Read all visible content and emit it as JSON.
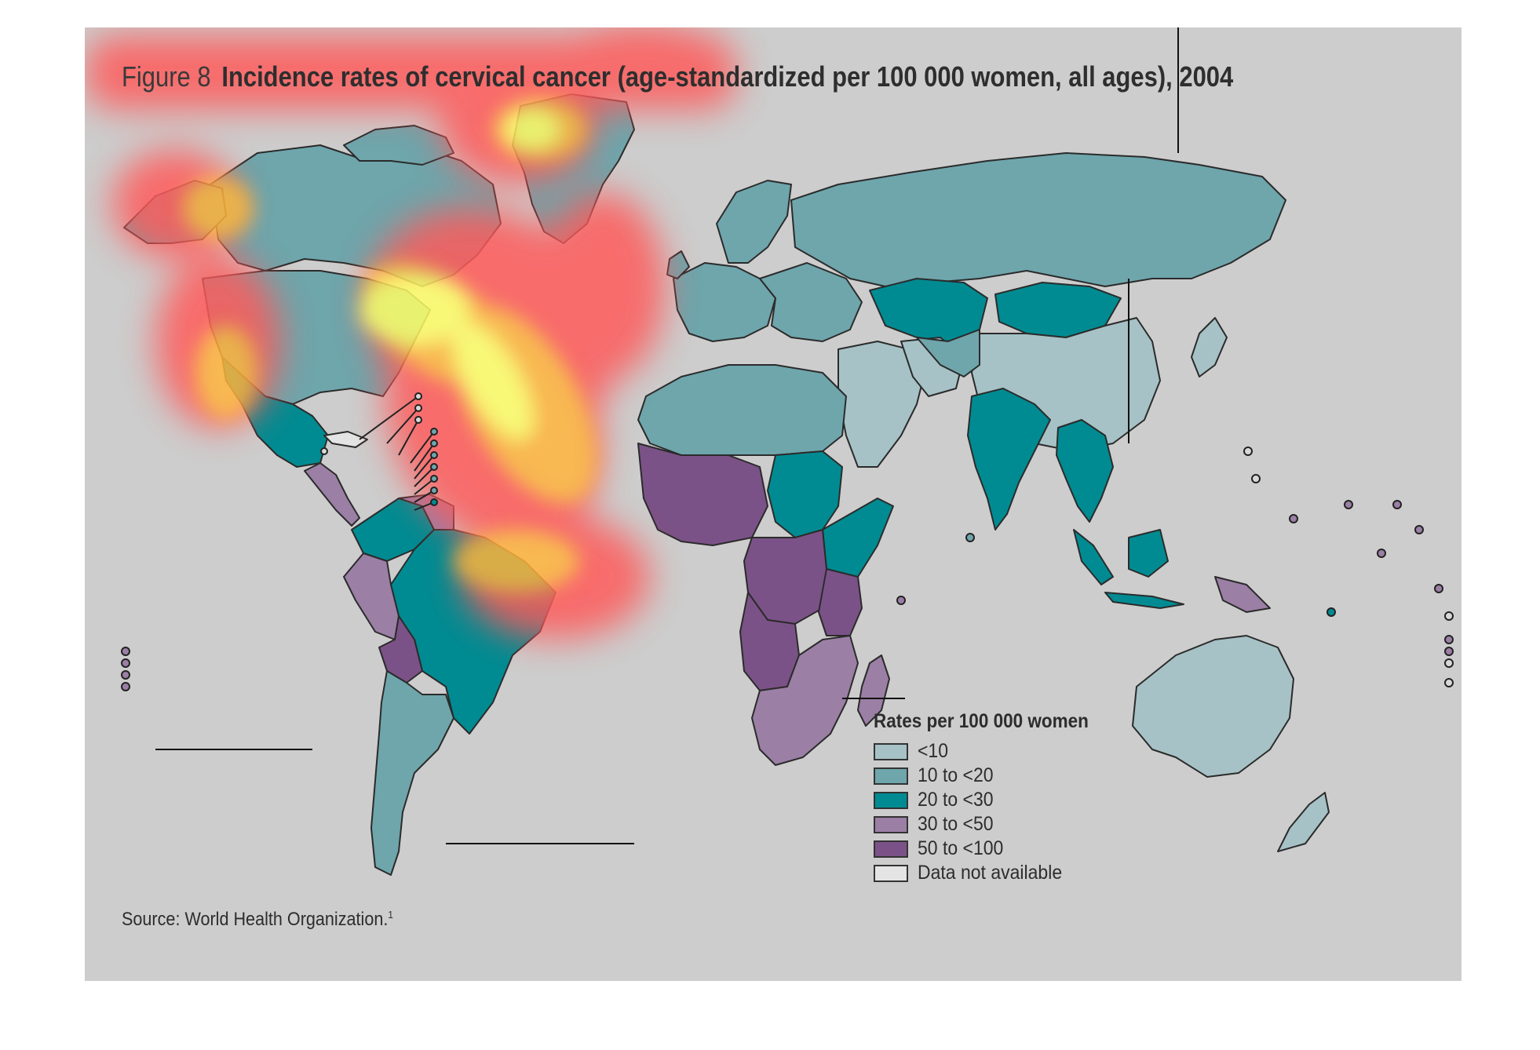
{
  "figure": {
    "label": "Figure 8",
    "title": "Incidence rates of cervical cancer (age-standardized per 100 000 women, all ages), 2004",
    "source": "Source: World Health Organization.",
    "source_ref": "1"
  },
  "legend": {
    "title": "Rates per 100 000 women",
    "items": [
      {
        "label": "<10",
        "color": "#a6c2c6"
      },
      {
        "label": "10 to <20",
        "color": "#6ea6ac"
      },
      {
        "label": "20 to <30",
        "color": "#008b92"
      },
      {
        "label": "30 to <50",
        "color": "#9b7fa5"
      },
      {
        "label": "50 to <100",
        "color": "#7b5287"
      },
      {
        "label": "Data not available",
        "color": "#e4e4e4"
      }
    ]
  },
  "colors": {
    "ocean": "#cdcdcd",
    "border": "#2b2b2b",
    "heat_core": "#ffff66",
    "heat_mid": "#ffb43a",
    "heat_outer": "#ff5a5a"
  },
  "regions": [
    {
      "name": "Canada",
      "class": "10 to <20"
    },
    {
      "name": "Greenland",
      "class": "10 to <20"
    },
    {
      "name": "United States",
      "class": "10 to <20"
    },
    {
      "name": "Mexico",
      "class": "20 to <30"
    },
    {
      "name": "Brazil",
      "class": "20 to <30"
    },
    {
      "name": "Bolivia",
      "class": "50 to <100"
    },
    {
      "name": "Peru",
      "class": "30 to <50"
    },
    {
      "name": "Argentina",
      "class": "10 to <20"
    },
    {
      "name": "Russia",
      "class": "10 to <20"
    },
    {
      "name": "China",
      "class": "<10"
    },
    {
      "name": "Mongolia",
      "class": "20 to <30"
    },
    {
      "name": "Kazakhstan",
      "class": "20 to <30"
    },
    {
      "name": "India",
      "class": "20 to <30"
    },
    {
      "name": "Sudan",
      "class": "20 to <30"
    },
    {
      "name": "Tanzania",
      "class": "50 to <100"
    },
    {
      "name": "Angola",
      "class": "50 to <100"
    },
    {
      "name": "South Africa",
      "class": "30 to <50"
    },
    {
      "name": "Madagascar",
      "class": "30 to <50"
    },
    {
      "name": "Australia",
      "class": "<10"
    },
    {
      "name": "Papua New Guinea",
      "class": "30 to <50"
    },
    {
      "name": "Indonesia",
      "class": "20 to <30"
    }
  ]
}
